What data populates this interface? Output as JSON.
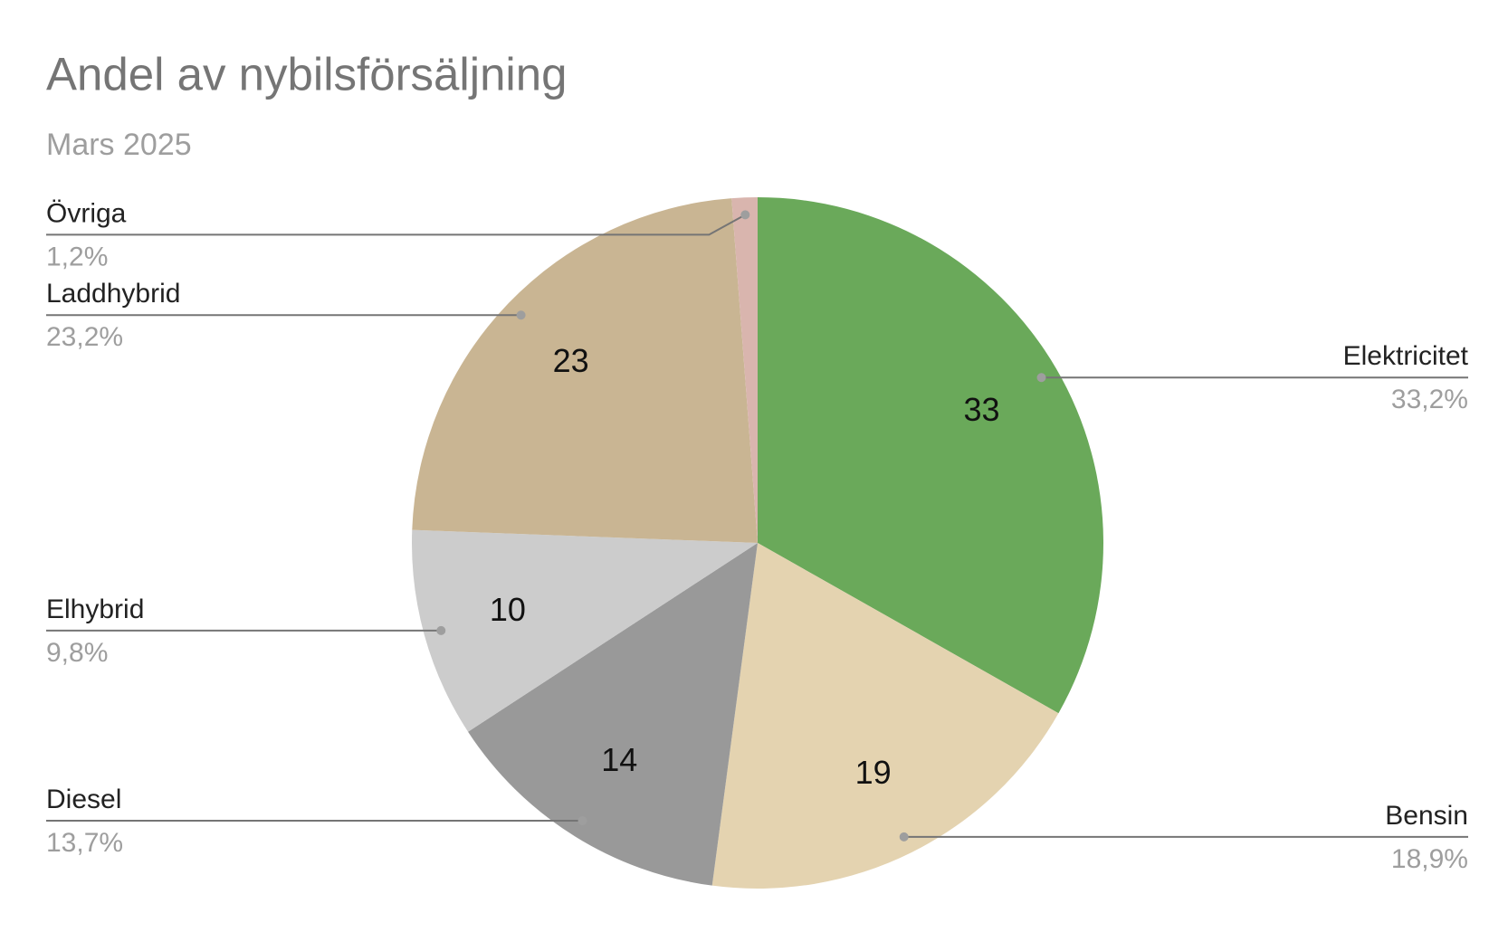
{
  "chart_data": {
    "type": "pie",
    "title": "Andel av nybilsförsäljning",
    "subtitle": "Mars 2025",
    "categories": [
      "Elektricitet",
      "Bensin",
      "Diesel",
      "Elhybrid",
      "Laddhybrid",
      "Övriga"
    ],
    "values": [
      33.2,
      18.9,
      13.7,
      9.8,
      23.2,
      1.2
    ],
    "value_labels": [
      "33,2%",
      "18,9%",
      "13,7%",
      "9,8%",
      "23,2%",
      "1,2%"
    ],
    "inner_labels": [
      "33",
      "19",
      "14",
      "10",
      "23",
      null
    ],
    "colors": [
      "#6aa95a",
      "#e4d3b0",
      "#999999",
      "#cccccc",
      "#c9b593",
      "#d9b5ae"
    ]
  }
}
